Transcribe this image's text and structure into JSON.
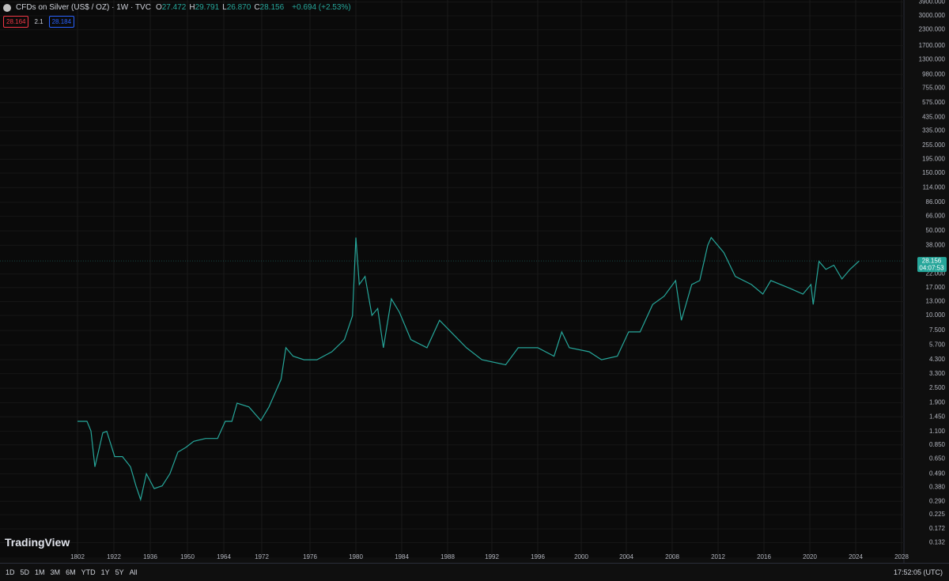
{
  "header": {
    "symbol": "CFDs on Silver (US$ / OZ) · 1W · TVC",
    "ohlc": [
      {
        "label": "O",
        "value": "27.472"
      },
      {
        "label": "H",
        "value": "29.791"
      },
      {
        "label": "L",
        "value": "26.870"
      },
      {
        "label": "C",
        "value": "28.156"
      }
    ],
    "change": "+0.694 (+2.53%)",
    "sell": "28.164",
    "spread": "2.1",
    "buy": "28.184"
  },
  "logo": "TradingView",
  "toolbar": {
    "ranges": [
      "1D",
      "5D",
      "1M",
      "3M",
      "6M",
      "YTD",
      "1Y",
      "5Y",
      "All"
    ],
    "clock": "17:52:05 (UTC)"
  },
  "chart_data": {
    "type": "line",
    "log_scale": true,
    "grid": true,
    "countdown": "04:07:53",
    "x": [
      1802.0,
      1833.3,
      1846.3,
      1859.4,
      1885.5,
      1898.5,
      1922.3,
      1925.3,
      1928.4,
      1930.5,
      1932.3,
      1934.5,
      1937.5,
      1940.5,
      1943.4,
      1946.4,
      1949.4,
      1952.4,
      1957.0,
      1961.6,
      1964.3,
      1965.7,
      1966.8,
      1969.3,
      1971.8,
      1972.6,
      1973.6,
      1974.0,
      1974.6,
      1975.5,
      1976.6,
      1977.9,
      1979.0,
      1979.7,
      1980.0,
      1980.3,
      1980.8,
      1981.4,
      1981.9,
      1982.4,
      1983.1,
      1983.8,
      1984.8,
      1986.2,
      1987.3,
      1988.3,
      1989.7,
      1991.1,
      1993.2,
      1994.3,
      1996.0,
      1997.5,
      1998.2,
      1998.9,
      2000.7,
      2001.8,
      2003.2,
      2004.2,
      2005.2,
      2006.3,
      2007.3,
      2008.3,
      2008.8,
      2009.7,
      2010.4,
      2011.1,
      2011.4,
      2012.5,
      2013.5,
      2014.9,
      2015.9,
      2016.6,
      2018.3,
      2019.4,
      2020.1,
      2020.3,
      2020.8,
      2021.4,
      2022.1,
      2022.8,
      2023.5,
      2024.3
    ],
    "series": [
      {
        "color": "#26a69a",
        "values": [
          1.33,
          1.33,
          1.11,
          0.56,
          1.07,
          1.1,
          0.68,
          0.68,
          0.56,
          0.39,
          0.3,
          0.49,
          0.37,
          0.39,
          0.49,
          0.74,
          0.81,
          0.91,
          0.96,
          0.96,
          1.33,
          1.33,
          1.88,
          1.75,
          1.35,
          1.75,
          2.96,
          5.4,
          4.6,
          4.3,
          4.3,
          5.0,
          6.3,
          9.9,
          44,
          18,
          21,
          10,
          11.4,
          5.4,
          13.7,
          10.6,
          6.3,
          5.4,
          9.1,
          7.3,
          5.4,
          4.3,
          3.9,
          5.4,
          5.4,
          4.6,
          7.3,
          5.4,
          5.0,
          4.3,
          4.6,
          7.3,
          7.3,
          12.3,
          14.4,
          19.4,
          9.1,
          18,
          19.4,
          38,
          44,
          33,
          21,
          18,
          15,
          19.4,
          16.7,
          15,
          18,
          12.3,
          28,
          24,
          26,
          20,
          24,
          28.156
        ]
      }
    ],
    "xlim": [
      1790,
      2032
    ],
    "xticks": [
      1802,
      1922,
      1936,
      1950,
      1964,
      1972,
      1976,
      1980,
      1984,
      1988,
      1992,
      1996,
      2000,
      2004,
      2008,
      2012,
      2016,
      2020,
      2024,
      2028
    ],
    "ylim": [
      0.1,
      4050
    ],
    "yticks": [
      {
        "value": 0.132,
        "label": "0.132"
      },
      {
        "value": 0.172,
        "label": "0.172"
      },
      {
        "value": 0.225,
        "label": "0.225"
      },
      {
        "value": 0.29,
        "label": "0.290"
      },
      {
        "value": 0.38,
        "label": "0.380"
      },
      {
        "value": 0.49,
        "label": "0.490"
      },
      {
        "value": 0.65,
        "label": "0.650"
      },
      {
        "value": 0.85,
        "label": "0.850"
      },
      {
        "value": 1.1,
        "label": "1.100"
      },
      {
        "value": 1.45,
        "label": "1.450"
      },
      {
        "value": 1.9,
        "label": "1.900"
      },
      {
        "value": 2.5,
        "label": "2.500"
      },
      {
        "value": 3.3,
        "label": "3.300"
      },
      {
        "value": 4.3,
        "label": "4.300"
      },
      {
        "value": 5.7,
        "label": "5.700"
      },
      {
        "value": 7.5,
        "label": "7.500"
      },
      {
        "value": 10,
        "label": "10.000"
      },
      {
        "value": 13,
        "label": "13.000"
      },
      {
        "value": 17,
        "label": "17.000"
      },
      {
        "value": 22,
        "label": "22.000"
      },
      {
        "value": 38,
        "label": "38.000"
      },
      {
        "value": 50,
        "label": "50.000"
      },
      {
        "value": 66,
        "label": "66.000"
      },
      {
        "value": 86,
        "label": "86.000"
      },
      {
        "value": 114,
        "label": "114.000"
      },
      {
        "value": 150,
        "label": "150.000"
      },
      {
        "value": 195,
        "label": "195.000"
      },
      {
        "value": 255,
        "label": "255.000"
      },
      {
        "value": 335,
        "label": "335.000"
      },
      {
        "value": 435,
        "label": "435.000"
      },
      {
        "value": 575,
        "label": "575.000"
      },
      {
        "value": 755,
        "label": "755.000"
      },
      {
        "value": 980,
        "label": "980.000"
      },
      {
        "value": 1300,
        "label": "1300.000"
      },
      {
        "value": 1700,
        "label": "1700.000"
      },
      {
        "value": 2300,
        "label": "2300.000"
      },
      {
        "value": 3000,
        "label": "3000.000"
      },
      {
        "value": 3900,
        "label": "3900.000"
      }
    ]
  }
}
